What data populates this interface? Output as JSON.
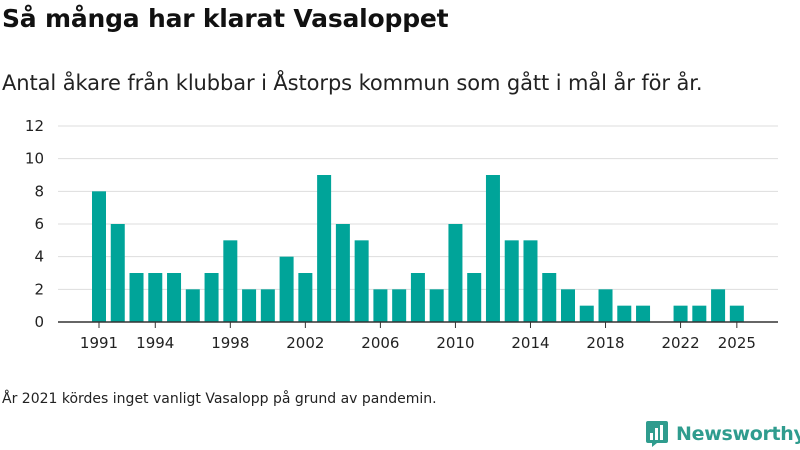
{
  "title": "Så många har klarat Vasaloppet",
  "subtitle": "Antal åkare från klubbar i Åstorps kommun som gått i mål år för år.",
  "note": "År 2021 kördes inget vanligt Vasalopp på grund av pandemin.",
  "brand": {
    "name": "Newsworthy",
    "icon": "bar-chart-logo-icon",
    "color": "#2f9c8e"
  },
  "chart_data": {
    "type": "bar",
    "title": "Så många har klarat Vasaloppet",
    "xlabel": "",
    "ylabel": "",
    "bar_color": "#00a499",
    "grid": true,
    "ylim": [
      0,
      12
    ],
    "yticks": [
      0,
      2,
      4,
      6,
      8,
      10,
      12
    ],
    "xticks": [
      1991,
      1994,
      1998,
      2002,
      2006,
      2010,
      2014,
      2018,
      2022,
      2025
    ],
    "categories": [
      1991,
      1992,
      1993,
      1994,
      1995,
      1996,
      1997,
      1998,
      1999,
      2000,
      2001,
      2002,
      2003,
      2004,
      2005,
      2006,
      2007,
      2008,
      2009,
      2010,
      2011,
      2012,
      2013,
      2014,
      2015,
      2016,
      2017,
      2018,
      2019,
      2020,
      2021,
      2022,
      2023,
      2024,
      2025
    ],
    "values": [
      8,
      6,
      3,
      3,
      3,
      2,
      3,
      5,
      2,
      2,
      4,
      3,
      9,
      6,
      5,
      2,
      2,
      3,
      2,
      6,
      3,
      9,
      5,
      5,
      3,
      2,
      1,
      2,
      1,
      1,
      0,
      1,
      1,
      2,
      1
    ]
  }
}
